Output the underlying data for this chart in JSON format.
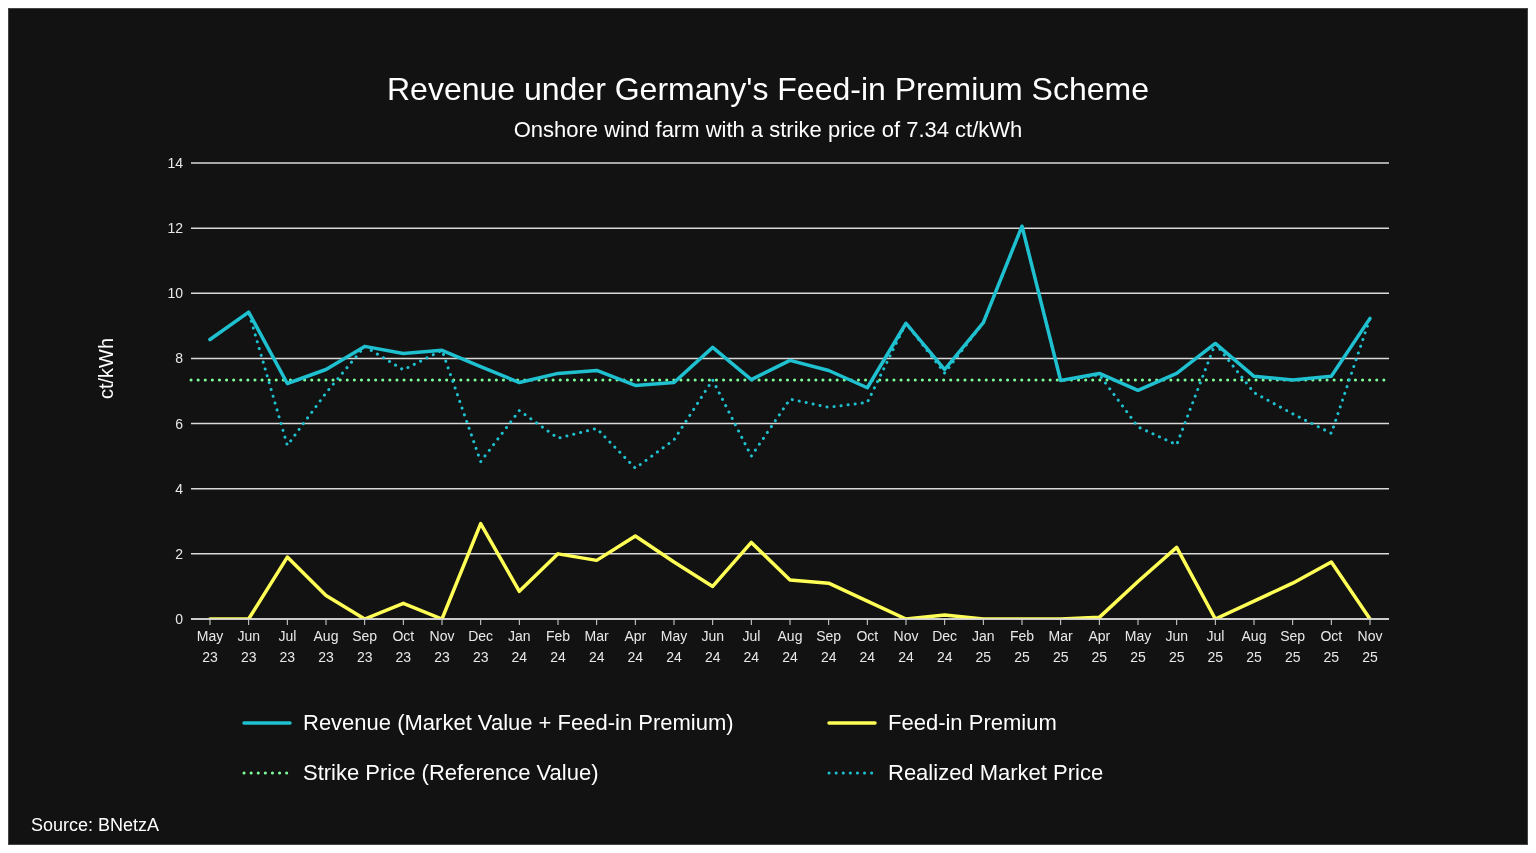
{
  "chart_data": {
    "type": "line",
    "title": "Revenue under Germany's Feed-in Premium Scheme",
    "subtitle": "Onshore wind farm with a strike price of 7.34 ct/kWh",
    "ylabel": "ct/kWh",
    "categories": [
      "May 23",
      "Jun 23",
      "Jul 23",
      "Aug 23",
      "Sep 23",
      "Oct 23",
      "Nov 23",
      "Dec 23",
      "Jan 24",
      "Feb 24",
      "Mar 24",
      "Apr 24",
      "May 24",
      "Jun 24",
      "Jul 24",
      "Aug 24",
      "Sep 24",
      "Oct 24",
      "Nov 24",
      "Dec 24",
      "Jan 25",
      "Feb 25",
      "Mar 25",
      "Apr 25",
      "May 25",
      "Jun 25",
      "Jul 25",
      "Aug 25",
      "Sep 25",
      "Oct 25",
      "Nov 25"
    ],
    "series": [
      {
        "name": "Revenue (Market Value + Feed-in Premium)",
        "color": "#1fc0cf",
        "line_style": "solid",
        "values": [
          8.58,
          9.42,
          7.23,
          7.66,
          8.37,
          8.15,
          8.25,
          7.75,
          7.26,
          7.54,
          7.63,
          7.17,
          7.26,
          8.34,
          7.35,
          7.94,
          7.63,
          7.1,
          9.08,
          7.66,
          9.1,
          12.06,
          7.32,
          7.54,
          7.02,
          7.54,
          8.46,
          7.45,
          7.34,
          7.45,
          9.23
        ]
      },
      {
        "name": "Feed-in Premium",
        "color": "#ffff55",
        "line_style": "solid",
        "values": [
          0,
          0,
          1.9,
          0.72,
          0,
          0.48,
          0,
          2.93,
          0.85,
          2.0,
          1.8,
          2.55,
          1.75,
          1.0,
          2.35,
          1.2,
          1.1,
          0.55,
          0,
          0.12,
          0,
          0,
          0,
          0.05,
          1.15,
          2.2,
          0,
          0.55,
          1.1,
          1.75,
          0
        ]
      },
      {
        "name": "Realized Market Price",
        "color": "#1fc0cf",
        "line_style": "dotted",
        "values": [
          8.58,
          9.42,
          5.33,
          6.94,
          8.37,
          7.65,
          8.25,
          4.83,
          6.4,
          5.55,
          5.85,
          4.63,
          5.5,
          7.34,
          5.0,
          6.75,
          6.5,
          6.65,
          9.08,
          7.55,
          9.1,
          12.06,
          7.32,
          7.5,
          5.9,
          5.35,
          8.46,
          6.95,
          6.3,
          5.7,
          9.23
        ]
      }
    ],
    "ref_lines": [
      {
        "axis": "y",
        "value": 7.34,
        "label": "Strike Price (Reference Value)",
        "color": "#7dfc9a",
        "line_style": "dotted"
      }
    ],
    "ylim": [
      0,
      14
    ],
    "yticks": [
      0,
      2,
      4,
      6,
      8,
      10,
      12,
      14
    ],
    "grid": "y",
    "legend": "bottom",
    "marker": "none",
    "annotations": [
      "Source: BNetzA"
    ]
  }
}
